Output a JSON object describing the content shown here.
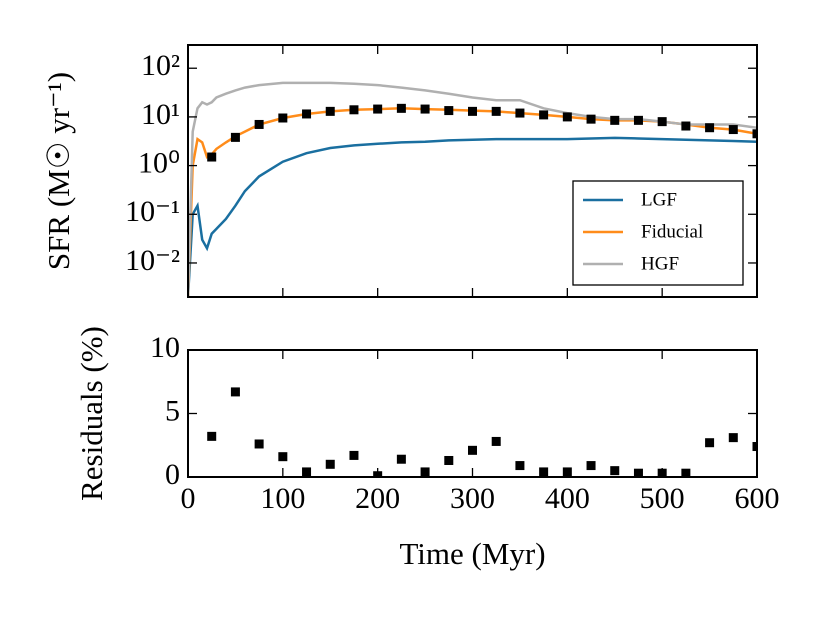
{
  "chart_data": [
    {
      "type": "line",
      "yscale": "log",
      "ylabel": "SFR (M☉ yr⁻¹)",
      "xlim": [
        0,
        600
      ],
      "xticks": [
        0,
        100,
        200,
        300,
        400,
        500,
        600
      ],
      "ylim": [
        0.002,
        300
      ],
      "yticks": [
        {
          "value": 0.01,
          "label": "10⁻²"
        },
        {
          "value": 0.1,
          "label": "10⁻¹"
        },
        {
          "value": 1,
          "label": "10⁰"
        },
        {
          "value": 10,
          "label": "10¹"
        },
        {
          "value": 100,
          "label": "10²"
        }
      ],
      "legend": "lower right",
      "x": [
        0,
        5,
        10,
        15,
        20,
        25,
        30,
        40,
        50,
        60,
        75,
        100,
        125,
        150,
        175,
        200,
        225,
        250,
        275,
        300,
        325,
        350,
        375,
        400,
        425,
        450,
        475,
        500,
        525,
        550,
        575,
        600
      ],
      "series": [
        {
          "name": "LGF",
          "color": "#1a6fa0",
          "values": [
            0.002,
            0.1,
            0.15,
            0.03,
            0.02,
            0.04,
            0.05,
            0.08,
            0.15,
            0.3,
            0.6,
            1.2,
            1.8,
            2.3,
            2.6,
            2.8,
            3,
            3.1,
            3.3,
            3.4,
            3.5,
            3.5,
            3.5,
            3.5,
            3.6,
            3.7,
            3.6,
            3.5,
            3.4,
            3.3,
            3.2,
            3.1
          ]
        },
        {
          "name": "Fiducial",
          "color": "#ff8c1a",
          "values": [
            0.002,
            1,
            3.5,
            3,
            1.5,
            1.7,
            2.2,
            3,
            4,
            5,
            7,
            9.5,
            11.5,
            13,
            14,
            14.5,
            15,
            14.5,
            14,
            13.5,
            13,
            12,
            11,
            10,
            9,
            8.5,
            8.5,
            8,
            7,
            6,
            5.5,
            4.5
          ]
        },
        {
          "name": "HGF",
          "color": "#b0b0b0",
          "values": [
            0.002,
            5,
            15,
            20,
            18,
            20,
            25,
            30,
            35,
            40,
            45,
            50,
            50,
            50,
            48,
            45,
            40,
            35,
            30,
            25,
            22,
            22,
            15,
            12,
            10,
            9,
            9,
            8,
            7,
            7,
            7,
            6
          ]
        }
      ],
      "markers": {
        "color": "#000000",
        "x": [
          25,
          50,
          75,
          100,
          125,
          150,
          175,
          200,
          225,
          250,
          275,
          300,
          325,
          350,
          375,
          400,
          425,
          450,
          475,
          500,
          525,
          550,
          575,
          600
        ],
        "values": [
          1.5,
          3.8,
          7,
          9.5,
          11.5,
          13,
          14,
          14.5,
          15,
          14.5,
          13.5,
          13,
          13,
          12,
          11,
          10,
          9,
          8.5,
          8.5,
          8,
          6.5,
          6,
          5.5,
          4.5
        ]
      }
    },
    {
      "type": "scatter",
      "ylabel": "Residuals (%)",
      "xlabel": "Time (Myr)",
      "xlim": [
        0,
        600
      ],
      "xticks": [
        0,
        100,
        200,
        300,
        400,
        500,
        600
      ],
      "ylim": [
        0,
        10
      ],
      "yticks": [
        0,
        5,
        10
      ],
      "color": "#000000",
      "x": [
        25,
        50,
        75,
        100,
        125,
        150,
        175,
        200,
        225,
        250,
        275,
        300,
        325,
        350,
        375,
        400,
        425,
        450,
        475,
        500,
        525,
        550,
        575,
        600
      ],
      "values": [
        3.2,
        6.7,
        2.6,
        1.6,
        0.4,
        1.0,
        1.7,
        0.1,
        1.4,
        0.4,
        1.3,
        2.1,
        2.8,
        0.9,
        0.4,
        0.4,
        0.9,
        0.5,
        0.3,
        0.3,
        0.3,
        2.7,
        3.1,
        2.4
      ]
    }
  ]
}
